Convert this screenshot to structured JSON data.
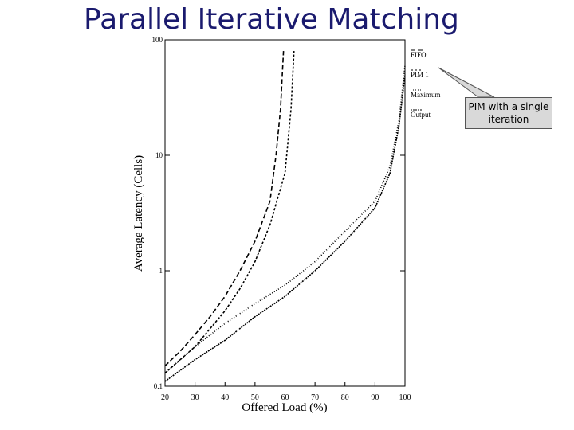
{
  "slide_title": "Parallel Iterative Matching",
  "callout": "PIM with a single iteration",
  "chart_data": {
    "type": "line",
    "x_label": "Offered Load (%)",
    "y_label": "Average Latency (Cells)",
    "xlim": [
      20,
      100
    ],
    "xticks": [
      20,
      30,
      40,
      50,
      60,
      70,
      80,
      90,
      100
    ],
    "ylim": [
      0.1,
      100
    ],
    "yticks": [
      0.1,
      1,
      10,
      100
    ],
    "yscale": "log",
    "series": [
      {
        "name": "FIFO",
        "color": "#000000",
        "x": [
          20,
          25,
          30,
          35,
          40,
          45,
          50,
          55,
          57,
          58.5,
          59.5
        ],
        "values": [
          0.15,
          0.2,
          0.28,
          0.4,
          0.6,
          1.0,
          1.8,
          4,
          10,
          25,
          80
        ]
      },
      {
        "name": "PIM 1",
        "color": "#000000",
        "x": [
          20,
          30,
          40,
          45,
          50,
          55,
          60,
          62,
          63
        ],
        "values": [
          0.13,
          0.22,
          0.45,
          0.7,
          1.2,
          2.5,
          7,
          25,
          80
        ]
      },
      {
        "name": "Maximum",
        "color": "#000000",
        "x": [
          20,
          30,
          40,
          50,
          60,
          70,
          80,
          90,
          95,
          98,
          100
        ],
        "values": [
          0.13,
          0.22,
          0.35,
          0.52,
          0.75,
          1.2,
          2.2,
          4,
          8,
          20,
          60
        ]
      },
      {
        "name": "Output",
        "color": "#000000",
        "x": [
          20,
          30,
          40,
          50,
          60,
          70,
          80,
          90,
          95,
          98,
          100
        ],
        "values": [
          0.11,
          0.17,
          0.25,
          0.4,
          0.6,
          1.0,
          1.8,
          3.5,
          7,
          18,
          50
        ]
      }
    ]
  }
}
